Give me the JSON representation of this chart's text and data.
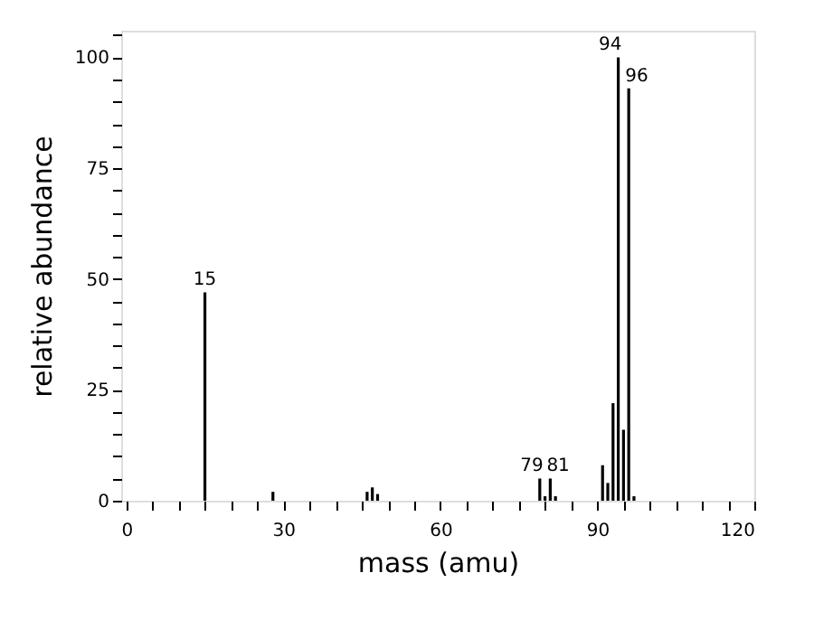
{
  "chart_data": {
    "type": "bar",
    "xlabel": "mass (amu)",
    "ylabel": "relative abundance",
    "x": [
      15,
      28,
      46,
      47,
      48,
      79,
      80,
      81,
      82,
      91,
      92,
      93,
      94,
      95,
      96,
      97
    ],
    "values": [
      47,
      2,
      2,
      3,
      1.5,
      5,
      1,
      5,
      1,
      8,
      4,
      22,
      100,
      16,
      93,
      1
    ],
    "color": "#000000",
    "xlim": [
      -1,
      120
    ],
    "ylim": [
      0,
      106
    ],
    "xticks": [
      0,
      {
        "value": 5,
        "label": null
      },
      {
        "value": 10,
        "label": null
      },
      {
        "value": 15,
        "label": null
      },
      {
        "value": 20,
        "label": null
      },
      {
        "value": 25,
        "label": null
      },
      30,
      {
        "value": 35,
        "label": null
      },
      {
        "value": 40,
        "label": null
      },
      {
        "value": 45,
        "label": null
      },
      {
        "value": 50,
        "label": null
      },
      {
        "value": 55,
        "label": null
      },
      60,
      {
        "value": 65,
        "label": null
      },
      {
        "value": 70,
        "label": null
      },
      {
        "value": 75,
        "label": null
      },
      {
        "value": 80,
        "label": null
      },
      {
        "value": 85,
        "label": null
      },
      90,
      {
        "value": 95,
        "label": null
      },
      {
        "value": 100,
        "label": null
      },
      {
        "value": 105,
        "label": null
      },
      {
        "value": 110,
        "label": null
      },
      {
        "value": 115,
        "label": null
      },
      120
    ],
    "yticks": [
      0,
      {
        "value": 5,
        "label": null
      },
      {
        "value": 10,
        "label": null
      },
      {
        "value": 15,
        "label": null
      },
      {
        "value": 20,
        "label": null
      },
      25,
      {
        "value": 30,
        "label": null
      },
      {
        "value": 35,
        "label": null
      },
      {
        "value": 40,
        "label": null
      },
      {
        "value": 45,
        "label": null
      },
      50,
      {
        "value": 55,
        "label": null
      },
      {
        "value": 60,
        "label": null
      },
      {
        "value": 65,
        "label": null
      },
      {
        "value": 70,
        "label": null
      },
      75,
      {
        "value": 80,
        "label": null
      },
      {
        "value": 85,
        "label": null
      },
      {
        "value": 90,
        "label": null
      },
      {
        "value": 95,
        "label": null
      },
      100,
      {
        "value": 105,
        "label": null
      }
    ],
    "annotations": [
      {
        "text": "15",
        "x": 15,
        "y": 47
      },
      {
        "text": "79",
        "x": 79,
        "y": 5
      },
      {
        "text": "81",
        "x": 81,
        "y": 5
      },
      {
        "text": "94",
        "x": 94,
        "y": 100
      },
      {
        "text": "96",
        "x": 96,
        "y": 93
      }
    ],
    "grid": false
  }
}
